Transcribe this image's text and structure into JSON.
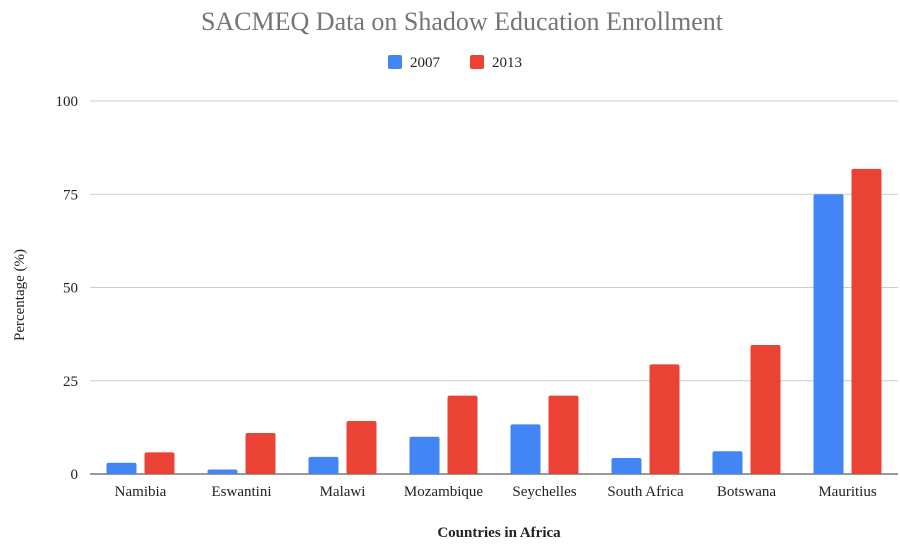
{
  "chart_data": {
    "type": "bar",
    "title": "SACMEQ Data on Shadow Education Enrollment",
    "xlabel": "Countries in Africa",
    "ylabel": "Percentage (%)",
    "ylim": [
      0,
      100
    ],
    "yticks": [
      "0",
      "25",
      "50",
      "75",
      "100"
    ],
    "grid": true,
    "legend_position": "top",
    "categories": [
      "Namibia",
      "Eswantini",
      "Malawi",
      "Mozambique",
      "Seychelles",
      "South Africa",
      "Botswana",
      "Mauritius"
    ],
    "series": [
      {
        "name": "2007",
        "color": "#4285f4",
        "values": [
          3,
          1.2,
          4.6,
          10,
          13.3,
          4.3,
          6.1,
          75
        ]
      },
      {
        "name": "2013",
        "color": "#ea4335",
        "values": [
          5.8,
          11,
          14.2,
          21,
          21,
          29.4,
          34.6,
          81.8
        ]
      }
    ]
  }
}
